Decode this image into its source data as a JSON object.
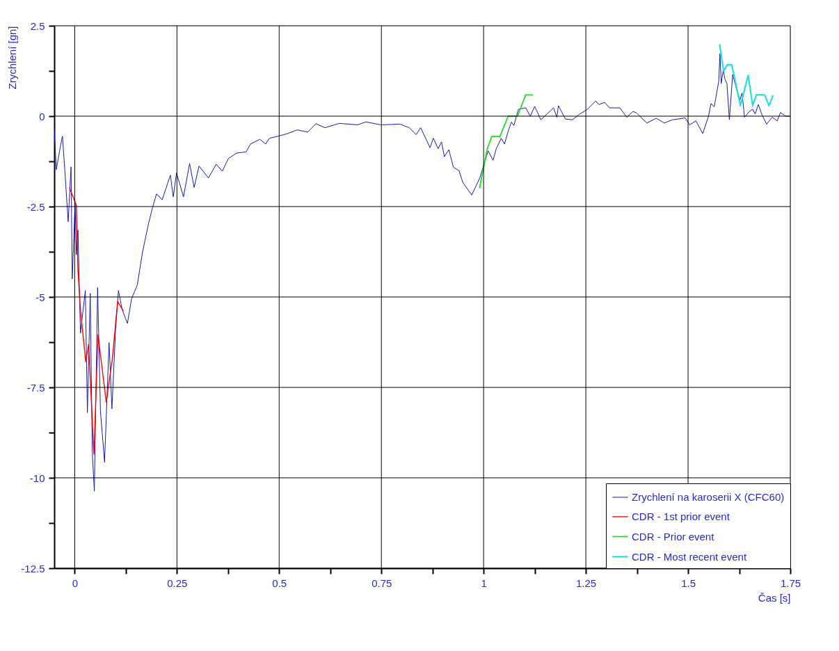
{
  "chart_data": {
    "type": "line",
    "xlabel": "Čas [s]",
    "ylabel": "Zrychlení [gn]",
    "xlim": [
      -0.05,
      1.75
    ],
    "xticks": [
      0,
      {
        "value": 0.125,
        "label": null
      },
      0.25,
      {
        "value": 0.375,
        "label": null
      },
      0.5,
      {
        "value": 0.625,
        "label": null
      },
      0.75,
      {
        "value": 0.875,
        "label": null
      },
      1,
      {
        "value": 1.125,
        "label": null
      },
      1.25,
      {
        "value": 1.375,
        "label": null
      },
      1.5,
      {
        "value": 1.625,
        "label": null
      },
      1.75
    ],
    "ylim": [
      -12.5,
      2.5
    ],
    "yticks": [
      -12.5,
      {
        "value": -11.25,
        "label": null
      },
      -10,
      {
        "value": -8.75,
        "label": null
      },
      -7.5,
      {
        "value": -6.25,
        "label": null
      },
      -5,
      {
        "value": -3.75,
        "label": null
      },
      -2.5,
      {
        "value": -1.25,
        "label": null
      },
      0,
      {
        "value": 1.25,
        "label": null
      },
      2.5
    ],
    "grid": true,
    "legend": "bottom right",
    "marker": "none",
    "line_style": "solid",
    "series": [
      {
        "name": "Zrychlení na karoserii X (CFC60)",
        "color": "#1a1ab4",
        "x": [
          -0.05,
          -0.045,
          -0.036,
          -0.03,
          -0.023,
          -0.016,
          -0.009,
          -0.006,
          0.001,
          0.004,
          0.008,
          0.014,
          0.026,
          0.031,
          0.038,
          0.043,
          0.048,
          0.056,
          0.063,
          0.073,
          0.084,
          0.091,
          0.1,
          0.107,
          0.116,
          0.129,
          0.139,
          0.153,
          0.166,
          0.18,
          0.19,
          0.2,
          0.214,
          0.234,
          0.241,
          0.249,
          0.266,
          0.281,
          0.292,
          0.304,
          0.327,
          0.346,
          0.361,
          0.376,
          0.396,
          0.419,
          0.43,
          0.453,
          0.467,
          0.476,
          0.499,
          0.521,
          0.544,
          0.57,
          0.59,
          0.612,
          0.647,
          0.692,
          0.712,
          0.749,
          0.795,
          0.818,
          0.835,
          0.846,
          0.869,
          0.877,
          0.889,
          0.897,
          0.904,
          0.915,
          0.926,
          0.94,
          0.949,
          0.971,
          0.991,
          1.003,
          1.011,
          1.023,
          1.031,
          1.043,
          1.051,
          1.06,
          1.068,
          1.074,
          1.085,
          1.103,
          1.114,
          1.125,
          1.14,
          1.171,
          1.179,
          1.183,
          1.2,
          1.217,
          1.234,
          1.254,
          1.274,
          1.282,
          1.296,
          1.308,
          1.333,
          1.35,
          1.365,
          1.373,
          1.399,
          1.422,
          1.442,
          1.462,
          1.493,
          1.504,
          1.519,
          1.536,
          1.55,
          1.556,
          1.564,
          1.57,
          1.575,
          1.578,
          1.581,
          1.586,
          1.59,
          1.595,
          1.601,
          1.609,
          1.618,
          1.627,
          1.632,
          1.638,
          1.65,
          1.658,
          1.664,
          1.672,
          1.681,
          1.692,
          1.706,
          1.718,
          1.726,
          1.738,
          1.75
        ],
        "values": [
          -0.37,
          -1.48,
          -0.9,
          -0.55,
          -1.7,
          -2.92,
          -1.4,
          -4.5,
          -2.42,
          -3.83,
          -3.15,
          -6.0,
          -4.82,
          -8.2,
          -4.9,
          -9.3,
          -10.37,
          -4.74,
          -8.16,
          -9.57,
          -6.26,
          -8.09,
          -5.89,
          -4.82,
          -5.35,
          -5.73,
          -5.05,
          -4.67,
          -3.75,
          -3.0,
          -2.54,
          -2.15,
          -2.31,
          -1.63,
          -2.23,
          -1.57,
          -2.23,
          -1.31,
          -1.97,
          -1.38,
          -1.71,
          -1.33,
          -1.52,
          -1.17,
          -1.02,
          -0.99,
          -0.77,
          -0.64,
          -0.77,
          -0.61,
          -0.55,
          -0.48,
          -0.38,
          -0.44,
          -0.21,
          -0.32,
          -0.2,
          -0.24,
          -0.16,
          -0.24,
          -0.22,
          -0.32,
          -0.51,
          -0.32,
          -0.87,
          -0.61,
          -0.9,
          -0.71,
          -1.12,
          -0.93,
          -1.41,
          -1.51,
          -1.83,
          -2.18,
          -1.7,
          -1.25,
          -0.96,
          -1.22,
          -0.9,
          -0.61,
          -0.77,
          -0.42,
          -0.16,
          -0.26,
          0.19,
          0.23,
          0.0,
          0.27,
          -0.1,
          0.23,
          -0.03,
          0.29,
          -0.08,
          -0.1,
          0.05,
          0.19,
          0.42,
          0.32,
          0.38,
          0.23,
          0.23,
          -0.03,
          0.13,
          0.1,
          -0.19,
          -0.06,
          -0.19,
          -0.1,
          -0.05,
          -0.24,
          -0.13,
          -0.48,
          0.0,
          0.35,
          0.26,
          0.64,
          0.96,
          1.73,
          0.9,
          1.28,
          1.03,
          0.9,
          -0.1,
          1.15,
          0.77,
          0.45,
          0.64,
          -0.03,
          0.13,
          0.19,
          0.06,
          0.32,
          0.03,
          -0.22,
          -0.03,
          -0.13,
          0.1,
          0.0,
          0.0
        ]
      },
      {
        "name": "CDR - 1st prior event",
        "color": "#ff0000",
        "x": [
          -0.013,
          0.004,
          0.008,
          0.014,
          0.027,
          0.034,
          0.047,
          0.057,
          0.077,
          0.092,
          0.105,
          0.119
        ],
        "values": [
          -1.97,
          -2.46,
          -4.29,
          -5.35,
          -6.79,
          -6.31,
          -9.34,
          -6.04,
          -7.9,
          -6.72,
          -5.12,
          -5.39
        ]
      },
      {
        "name": "CDR - Prior event",
        "color": "#22dd22",
        "x": [
          0.99,
          1.009,
          1.02,
          1.04,
          1.06,
          1.083,
          1.103,
          1.121
        ],
        "values": [
          -1.99,
          -0.9,
          -0.56,
          -0.56,
          0.0,
          0.0,
          0.59,
          0.59
        ]
      },
      {
        "name": "CDR - Most recent event",
        "color": "#22e0e0",
        "x": [
          1.577,
          1.587,
          1.596,
          1.607,
          1.628,
          1.647,
          1.658,
          1.667,
          1.687,
          1.698,
          1.708
        ],
        "values": [
          1.99,
          1.25,
          1.42,
          1.42,
          0.29,
          1.13,
          0.29,
          0.59,
          0.59,
          0.29,
          0.58
        ]
      }
    ]
  }
}
